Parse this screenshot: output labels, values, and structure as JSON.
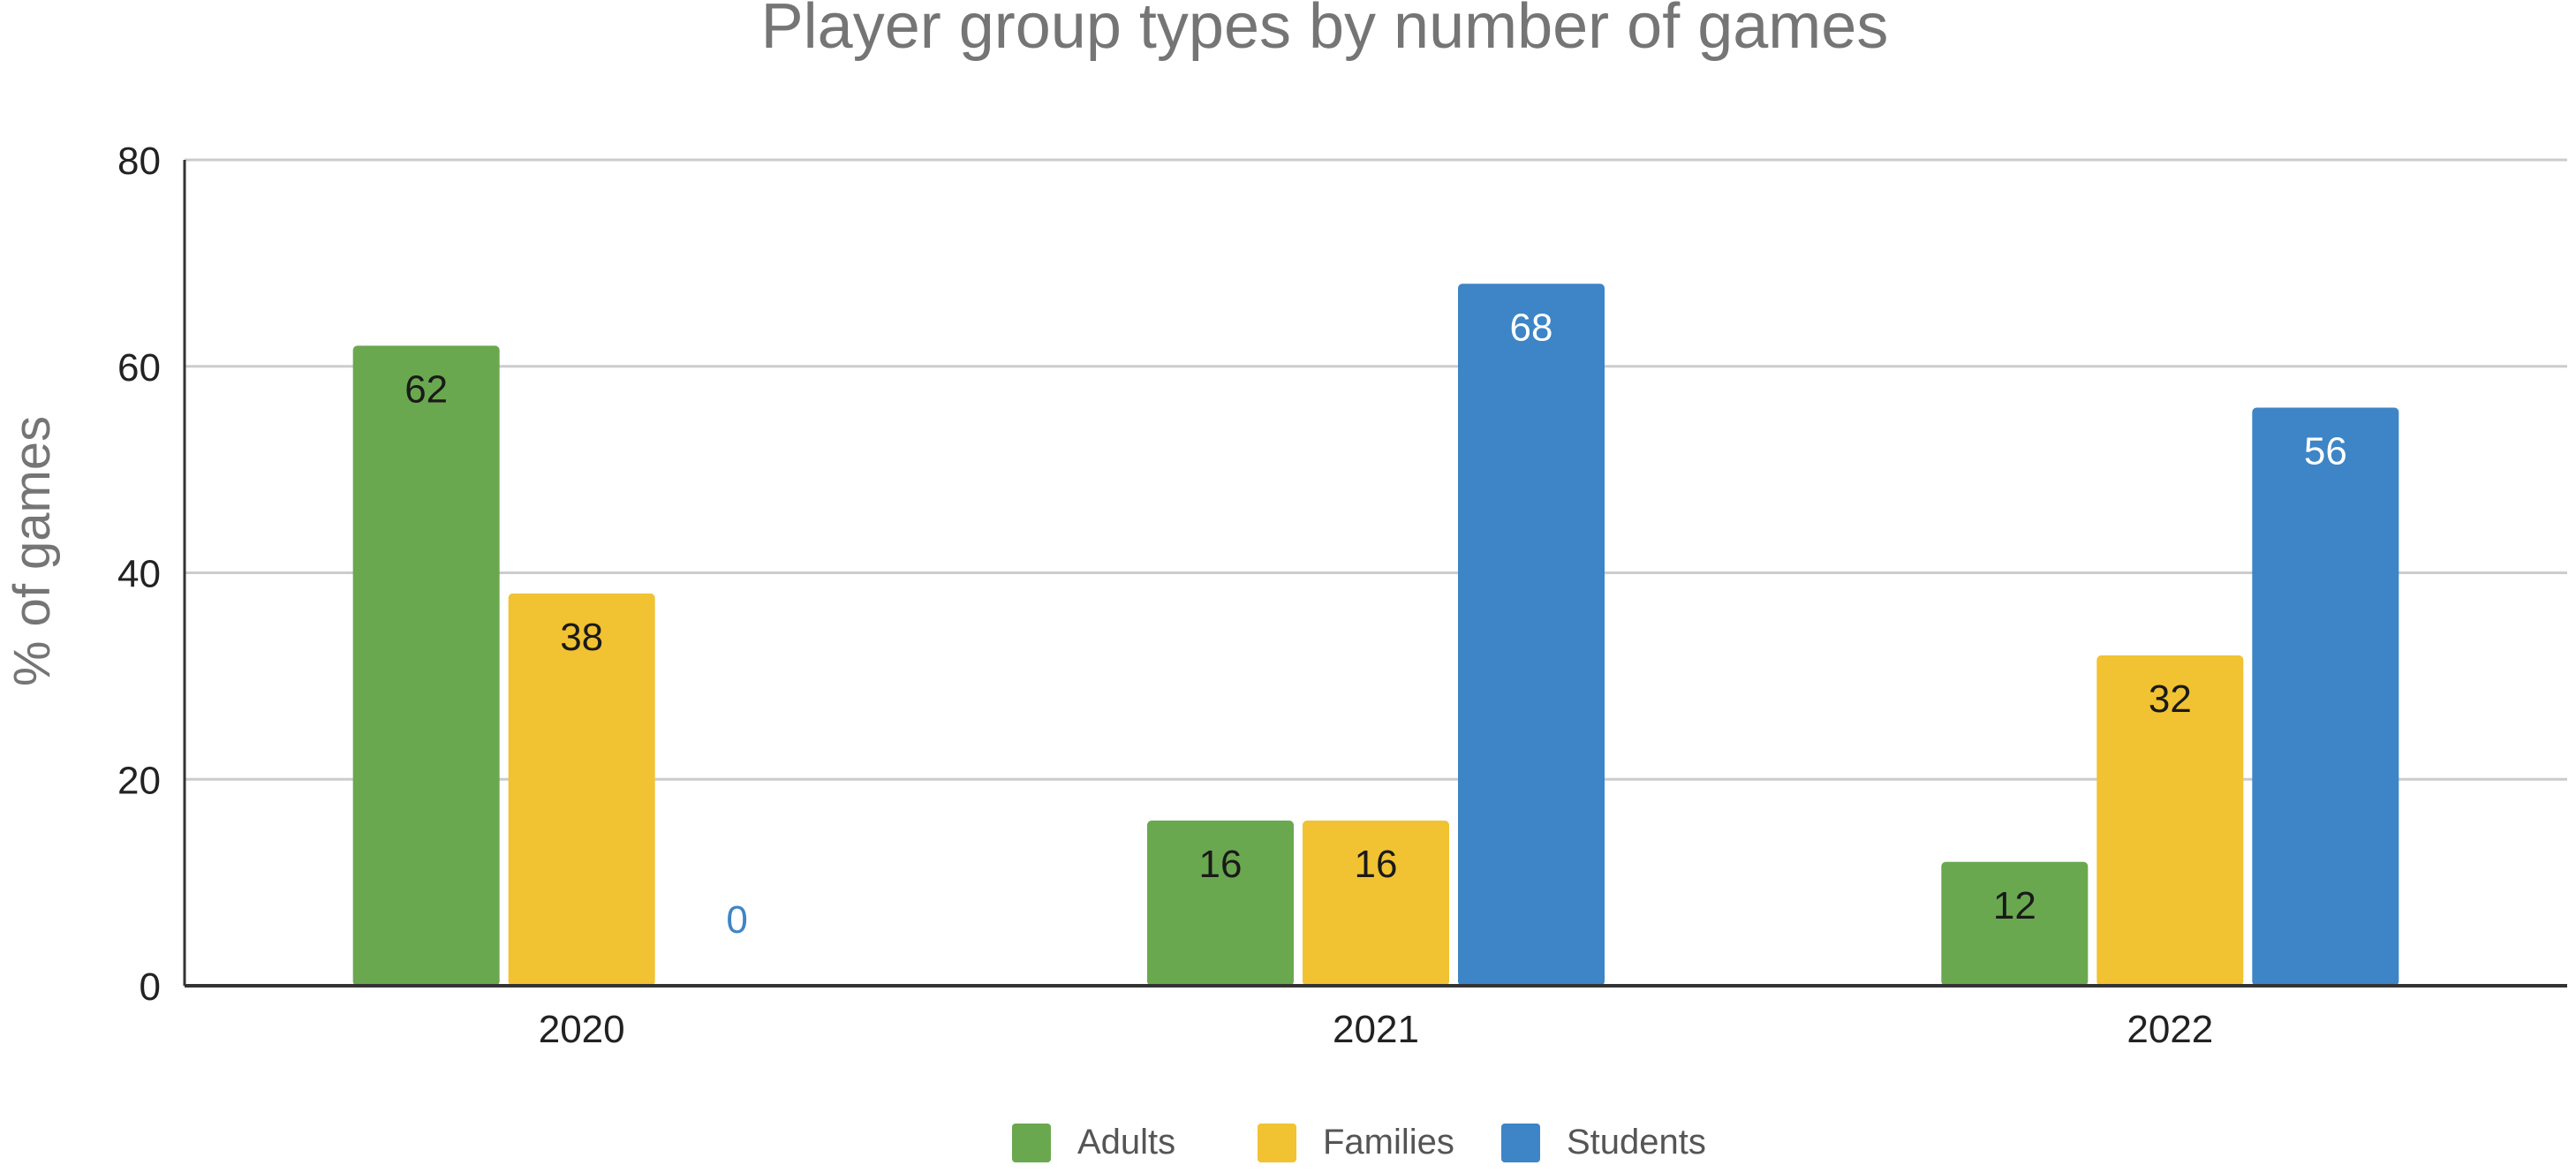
{
  "chart_data": {
    "type": "bar",
    "title": "Player group types by number of games",
    "xlabel": "",
    "ylabel": "% of games",
    "categories": [
      "2020",
      "2021",
      "2022"
    ],
    "series": [
      {
        "name": "Adults",
        "values": [
          62,
          16,
          12
        ],
        "color": "#6aa84f"
      },
      {
        "name": "Families",
        "values": [
          38,
          16,
          32
        ],
        "color": "#f1c232"
      },
      {
        "name": "Students",
        "values": [
          0,
          68,
          56
        ],
        "color": "#3d85c6"
      }
    ],
    "ylim": [
      0,
      80
    ],
    "yticks": [
      "0",
      "20",
      "40",
      "60",
      "80"
    ],
    "grid": true,
    "legend_position": "bottom"
  }
}
